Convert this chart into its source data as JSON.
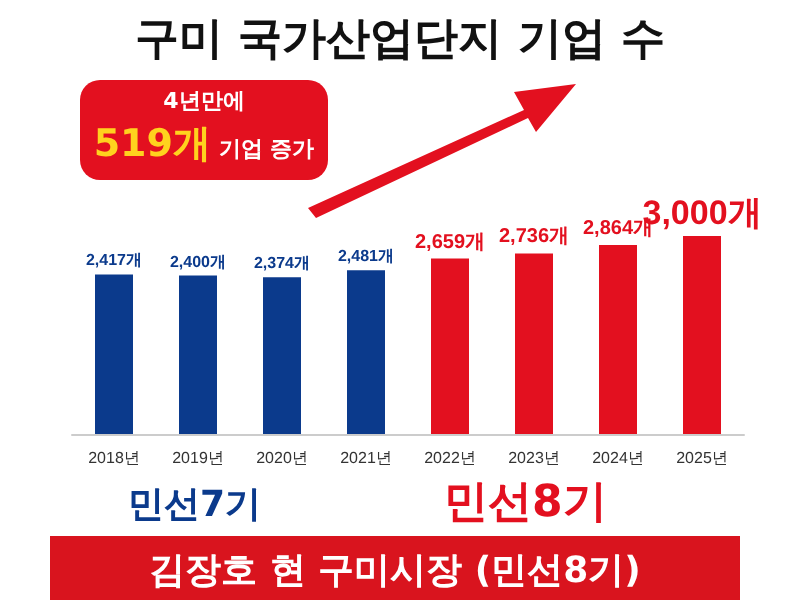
{
  "chart_data": {
    "type": "bar",
    "title": "구미 국가산업단지 기업 수",
    "categories": [
      "2018년",
      "2019년",
      "2020년",
      "2021년",
      "2022년",
      "2023년",
      "2024년",
      "2025년"
    ],
    "values": [
      2417,
      2400,
      2374,
      2481,
      2659,
      2736,
      2864,
      3000
    ],
    "colors": [
      "#0b3a8c",
      "#0b3a8c",
      "#0b3a8c",
      "#0b3a8c",
      "#e3101f",
      "#e3101f",
      "#e3101f",
      "#e3101f"
    ],
    "value_labels": [
      "2,417개",
      "2,400개",
      "2,374개",
      "2,481개",
      "2,659개",
      "2,736개",
      "2,864개",
      "3,000개"
    ],
    "annotations": [
      "4년만에",
      "519개 기업 증가",
      "민선7기",
      "민선8기",
      "김장호 현 구미시장 (민선8기)"
    ],
    "data_labels": false
  }
}
